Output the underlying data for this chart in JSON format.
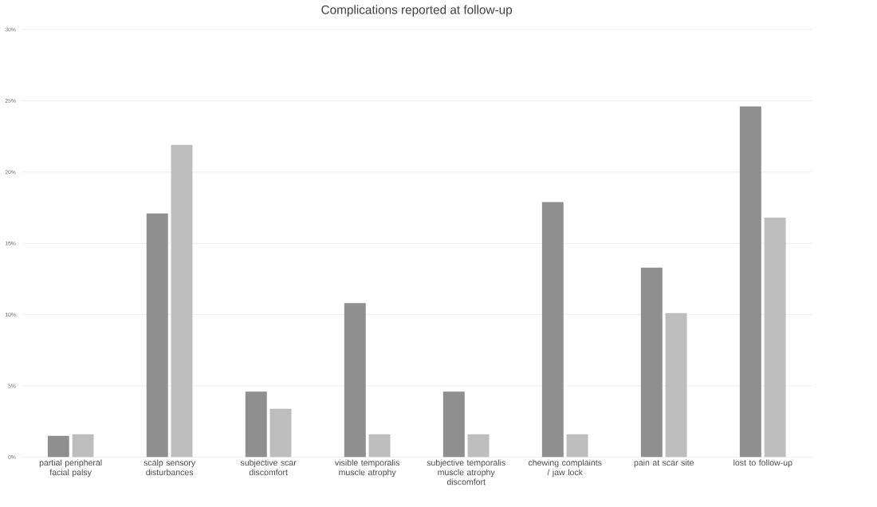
{
  "chart_data": {
    "type": "bar",
    "title": "Complications reported at follow-up",
    "categories": [
      "partial peripheral facial palsy",
      "scalp sensory disturbances",
      "subjective scar discomfort",
      "visible temporalis muscle atrophy",
      "subjective temporalis muscle atrophy discomfort",
      "chewing complaints / jaw lock",
      "pain at scar site",
      "lost to follow-up"
    ],
    "series": [
      {
        "color": "#8f8f8f",
        "values": [
          1.5,
          17.1,
          4.6,
          10.8,
          4.6,
          17.9,
          13.3,
          24.6
        ]
      },
      {
        "color": "#bdbdbd",
        "values": [
          1.6,
          21.9,
          3.4,
          1.6,
          1.6,
          1.6,
          10.1,
          16.8
        ]
      }
    ],
    "ylim": [
      0,
      30
    ],
    "yticks": [
      {
        "value": 0,
        "label": "0%"
      },
      {
        "value": 5,
        "label": "5%"
      },
      {
        "value": 10,
        "label": "10%"
      },
      {
        "value": 15,
        "label": "15%"
      },
      {
        "value": 20,
        "label": "20%"
      },
      {
        "value": 25,
        "label": "25%"
      },
      {
        "value": 30,
        "label": "30%"
      }
    ],
    "grid": "y"
  }
}
